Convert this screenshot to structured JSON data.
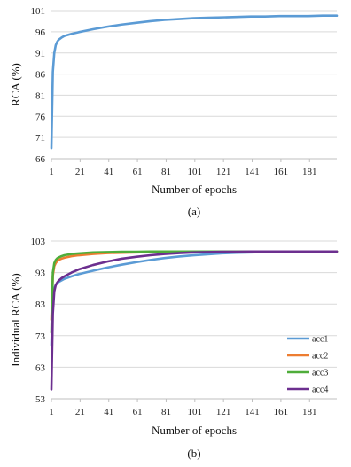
{
  "chart_data": [
    {
      "type": "line",
      "caption": "(a)",
      "xlabel": "Number of epochs",
      "ylabel": "RCA (%)",
      "xlim": [
        1,
        200
      ],
      "ylim": [
        66,
        101
      ],
      "xticks": [
        1,
        21,
        41,
        61,
        81,
        101,
        121,
        141,
        161,
        181
      ],
      "yticks": [
        66,
        71,
        76,
        81,
        86,
        91,
        96,
        101
      ],
      "grid": "horizontal",
      "legend": "none",
      "series": [
        {
          "color": "#5b9bd5",
          "x": [
            1,
            2,
            3,
            4,
            5,
            6,
            8,
            10,
            15,
            20,
            30,
            40,
            50,
            60,
            70,
            80,
            90,
            100,
            110,
            120,
            130,
            140,
            150,
            160,
            170,
            180,
            190,
            200
          ],
          "values": [
            68.5,
            86.5,
            91.0,
            92.8,
            93.6,
            94.1,
            94.6,
            95.0,
            95.5,
            95.9,
            96.6,
            97.2,
            97.7,
            98.1,
            98.5,
            98.8,
            99.0,
            99.2,
            99.3,
            99.4,
            99.5,
            99.6,
            99.6,
            99.7,
            99.7,
            99.7,
            99.8,
            99.8
          ]
        }
      ]
    },
    {
      "type": "line",
      "caption": "(b)",
      "xlabel": "Number of epochs",
      "ylabel": "Individual RCA (%)",
      "xlim": [
        1,
        200
      ],
      "ylim": [
        53,
        103
      ],
      "xticks": [
        1,
        21,
        41,
        61,
        81,
        101,
        121,
        141,
        161,
        181
      ],
      "yticks": [
        53,
        63,
        73,
        83,
        93,
        103
      ],
      "grid": "horizontal",
      "legend": "right",
      "series": [
        {
          "name": "acc1",
          "color": "#5b9bd5",
          "x": [
            1,
            2,
            3,
            4,
            5,
            6,
            8,
            10,
            15,
            20,
            30,
            40,
            50,
            60,
            70,
            80,
            90,
            100,
            110,
            120,
            130,
            140,
            150,
            160,
            170,
            180,
            190,
            200
          ],
          "values": [
            70.0,
            85.0,
            88.0,
            89.0,
            89.6,
            90.0,
            90.5,
            91.0,
            91.8,
            92.5,
            93.6,
            94.6,
            95.5,
            96.3,
            97.0,
            97.6,
            98.1,
            98.5,
            98.8,
            99.1,
            99.3,
            99.4,
            99.5,
            99.6,
            99.6,
            99.7,
            99.7,
            99.7
          ]
        },
        {
          "name": "acc2",
          "color": "#ed7d31",
          "x": [
            1,
            2,
            3,
            4,
            5,
            6,
            8,
            10,
            15,
            20,
            30,
            40,
            50,
            60,
            70,
            80,
            90,
            100,
            110,
            120,
            130,
            140,
            150,
            160,
            170,
            180,
            190,
            200
          ],
          "values": [
            78.0,
            92.0,
            95.0,
            96.0,
            96.6,
            97.0,
            97.4,
            97.7,
            98.2,
            98.5,
            98.9,
            99.2,
            99.3,
            99.4,
            99.5,
            99.5,
            99.6,
            99.6,
            99.6,
            99.7,
            99.7,
            99.7,
            99.7,
            99.7,
            99.7,
            99.7,
            99.7,
            99.7
          ]
        },
        {
          "name": "acc3",
          "color": "#4fad3a",
          "x": [
            1,
            2,
            3,
            4,
            5,
            6,
            8,
            10,
            15,
            20,
            30,
            40,
            50,
            60,
            70,
            80,
            90,
            100,
            110,
            120,
            130,
            140,
            150,
            160,
            170,
            180,
            190,
            200
          ],
          "values": [
            74.0,
            93.0,
            96.0,
            97.0,
            97.5,
            97.8,
            98.2,
            98.5,
            98.9,
            99.1,
            99.4,
            99.5,
            99.6,
            99.6,
            99.7,
            99.7,
            99.7,
            99.7,
            99.7,
            99.7,
            99.7,
            99.7,
            99.7,
            99.7,
            99.7,
            99.7,
            99.7,
            99.7
          ]
        },
        {
          "name": "acc4",
          "color": "#6c2f8f",
          "x": [
            1,
            2,
            3,
            4,
            5,
            6,
            8,
            10,
            15,
            20,
            30,
            40,
            50,
            60,
            70,
            80,
            90,
            100,
            110,
            120,
            130,
            140,
            150,
            160,
            170,
            180,
            190,
            200
          ],
          "values": [
            56.0,
            80.0,
            87.0,
            89.0,
            89.8,
            90.4,
            91.2,
            91.8,
            93.0,
            94.0,
            95.4,
            96.5,
            97.4,
            98.0,
            98.5,
            98.9,
            99.2,
            99.4,
            99.5,
            99.6,
            99.6,
            99.7,
            99.7,
            99.7,
            99.7,
            99.7,
            99.7,
            99.7
          ]
        }
      ]
    }
  ]
}
